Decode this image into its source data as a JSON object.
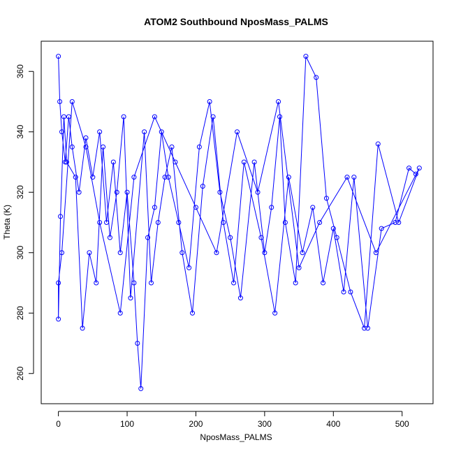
{
  "chart_data": {
    "type": "scatter",
    "title": "ATOM2 Southbound NposMass_PALMS",
    "xlabel": "NposMass_PALMS",
    "ylabel": "Theta (K)",
    "xlim": [
      -25,
      545
    ],
    "ylim": [
      250,
      370
    ],
    "xticks": [
      0,
      100,
      200,
      300,
      400,
      500
    ],
    "yticks": [
      260,
      280,
      300,
      320,
      340,
      360
    ],
    "grid": false,
    "legend": "none",
    "marker": "open-circle",
    "connect_points": true,
    "series_color": "#0000ff",
    "x": [
      0,
      2,
      5,
      10,
      15,
      20,
      30,
      40,
      50,
      60,
      70,
      80,
      90,
      100,
      110,
      115,
      120,
      130,
      140,
      150,
      160,
      175,
      190,
      205,
      220,
      235,
      250,
      265,
      285,
      300,
      310,
      322,
      330,
      345,
      360,
      375,
      390,
      405,
      425,
      445,
      465,
      495,
      525,
      462,
      420,
      380,
      350,
      320,
      290,
      260,
      230,
      200,
      170,
      140,
      110,
      90,
      60,
      40,
      20,
      5,
      0,
      0,
      3,
      8,
      12,
      25,
      35,
      45,
      55,
      65,
      75,
      85,
      95,
      105,
      125,
      135,
      145,
      155,
      165,
      180,
      195,
      210,
      225,
      240,
      255,
      270,
      295,
      315,
      335,
      355,
      370,
      385,
      400,
      415,
      430,
      450,
      470,
      490,
      510,
      520
    ],
    "y": [
      365,
      350,
      340,
      330,
      345,
      335,
      320,
      338,
      325,
      340,
      310,
      330,
      300,
      320,
      290,
      270,
      255,
      305,
      315,
      340,
      325,
      310,
      295,
      335,
      350,
      320,
      305,
      285,
      330,
      300,
      315,
      345,
      310,
      290,
      365,
      358,
      318,
      305,
      287,
      275,
      336,
      310,
      328,
      300,
      325,
      310,
      295,
      350,
      320,
      340,
      300,
      315,
      330,
      345,
      325,
      280,
      310,
      335,
      350,
      300,
      290,
      278,
      312,
      345,
      330,
      325,
      275,
      300,
      290,
      335,
      305,
      320,
      345,
      285,
      340,
      290,
      310,
      325,
      335,
      300,
      280,
      322,
      345,
      310,
      290,
      330,
      305,
      280,
      325,
      300,
      315,
      290,
      308,
      287,
      325,
      275,
      308,
      310,
      328,
      326
    ]
  }
}
